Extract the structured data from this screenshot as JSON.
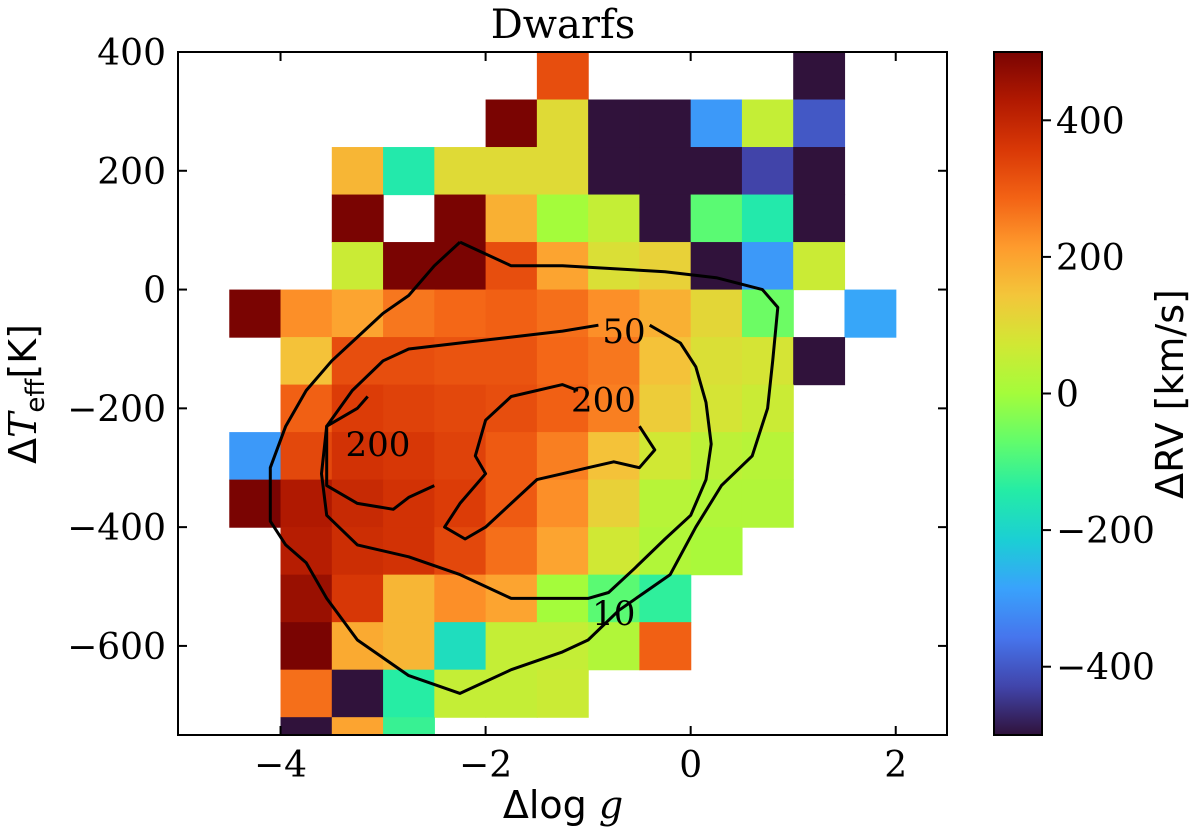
{
  "chart_data": {
    "type": "heatmap",
    "title": "Dwarfs",
    "xlabel": "Δlog g",
    "ylabel": "ΔT_eff[K]",
    "xlim": [
      -5,
      2.5
    ],
    "ylim": [
      -750,
      400
    ],
    "x_ticks": [
      -4,
      -2,
      0,
      2
    ],
    "x_tick_labels": [
      "−4",
      "−2",
      "0",
      "2"
    ],
    "y_ticks": [
      400,
      200,
      0,
      -200,
      -400,
      -600
    ],
    "y_tick_labels": [
      "400",
      "200",
      "0",
      "−200",
      "−400",
      "−600"
    ],
    "bin_width_x": 0.5,
    "bin_height_y": 80,
    "colorbar": {
      "label": "ΔRV [km/s]",
      "range": [
        -500,
        500
      ],
      "ticks": [
        400,
        200,
        0,
        -200,
        -400
      ],
      "tick_labels": [
        "400",
        "200",
        "0",
        "−200",
        "−400"
      ],
      "colormap": [
        "#30123b",
        "#4145ab",
        "#4675ed",
        "#39a2fc",
        "#1bcfd4",
        "#24eca6",
        "#61fc6c",
        "#a4fc3b",
        "#d1e834",
        "#f3c63a",
        "#fe9b2d",
        "#f36315",
        "#d93806",
        "#b11901",
        "#7a0402"
      ]
    },
    "cells": [
      {
        "x": -1.25,
        "y": 360,
        "v": 320
      },
      {
        "x": 1.25,
        "y": 360,
        "v": -500
      },
      {
        "x": -1.75,
        "y": 280,
        "v": 500
      },
      {
        "x": -1.25,
        "y": 280,
        "v": 100
      },
      {
        "x": -0.75,
        "y": 280,
        "v": -500
      },
      {
        "x": -0.25,
        "y": 280,
        "v": -500
      },
      {
        "x": 0.25,
        "y": 280,
        "v": -300
      },
      {
        "x": 0.75,
        "y": 280,
        "v": 50
      },
      {
        "x": 1.25,
        "y": 280,
        "v": -400
      },
      {
        "x": -3.25,
        "y": 200,
        "v": 170
      },
      {
        "x": -2.75,
        "y": 200,
        "v": -150
      },
      {
        "x": -2.25,
        "y": 200,
        "v": 100
      },
      {
        "x": -1.75,
        "y": 200,
        "v": 100
      },
      {
        "x": -1.25,
        "y": 200,
        "v": 100
      },
      {
        "x": -0.75,
        "y": 200,
        "v": -500
      },
      {
        "x": -0.25,
        "y": 200,
        "v": -500
      },
      {
        "x": 0.25,
        "y": 200,
        "v": -500
      },
      {
        "x": 0.75,
        "y": 200,
        "v": -430
      },
      {
        "x": 1.25,
        "y": 200,
        "v": -500
      },
      {
        "x": -3.25,
        "y": 120,
        "v": 500
      },
      {
        "x": -2.25,
        "y": 120,
        "v": 500
      },
      {
        "x": -1.75,
        "y": 120,
        "v": 180
      },
      {
        "x": -1.25,
        "y": 120,
        "v": 0
      },
      {
        "x": -0.75,
        "y": 120,
        "v": 50
      },
      {
        "x": -0.25,
        "y": 120,
        "v": -500
      },
      {
        "x": 0.25,
        "y": 120,
        "v": -80
      },
      {
        "x": 0.75,
        "y": 120,
        "v": -150
      },
      {
        "x": 1.25,
        "y": 120,
        "v": -500
      },
      {
        "x": -3.25,
        "y": 40,
        "v": 60
      },
      {
        "x": -2.75,
        "y": 40,
        "v": 500
      },
      {
        "x": -2.25,
        "y": 40,
        "v": 500
      },
      {
        "x": -1.75,
        "y": 40,
        "v": 320
      },
      {
        "x": -1.25,
        "y": 40,
        "v": 200
      },
      {
        "x": -0.75,
        "y": 40,
        "v": 90
      },
      {
        "x": -0.25,
        "y": 40,
        "v": 120
      },
      {
        "x": 0.25,
        "y": 40,
        "v": -500
      },
      {
        "x": 0.75,
        "y": 40,
        "v": -300
      },
      {
        "x": 1.25,
        "y": 40,
        "v": 60
      },
      {
        "x": -4.25,
        "y": -40,
        "v": 500
      },
      {
        "x": -3.75,
        "y": -40,
        "v": 230
      },
      {
        "x": -3.25,
        "y": -40,
        "v": 200
      },
      {
        "x": -2.75,
        "y": -40,
        "v": 260
      },
      {
        "x": -2.25,
        "y": -40,
        "v": 280
      },
      {
        "x": -1.75,
        "y": -40,
        "v": 290
      },
      {
        "x": -1.25,
        "y": -40,
        "v": 270
      },
      {
        "x": -0.75,
        "y": -40,
        "v": 230
      },
      {
        "x": -0.25,
        "y": -40,
        "v": 180
      },
      {
        "x": 0.25,
        "y": -40,
        "v": 110
      },
      {
        "x": 0.75,
        "y": -40,
        "v": -60
      },
      {
        "x": 1.75,
        "y": -40,
        "v": -280
      },
      {
        "x": -3.75,
        "y": -120,
        "v": 150
      },
      {
        "x": -3.25,
        "y": -120,
        "v": 320
      },
      {
        "x": -2.75,
        "y": -120,
        "v": 320
      },
      {
        "x": -2.25,
        "y": -120,
        "v": 310
      },
      {
        "x": -1.75,
        "y": -120,
        "v": 310
      },
      {
        "x": -1.25,
        "y": -120,
        "v": 280
      },
      {
        "x": -0.75,
        "y": -120,
        "v": 260
      },
      {
        "x": -0.25,
        "y": -120,
        "v": 150
      },
      {
        "x": 0.25,
        "y": -120,
        "v": 90
      },
      {
        "x": 0.75,
        "y": -120,
        "v": 80
      },
      {
        "x": 1.25,
        "y": -120,
        "v": -500
      },
      {
        "x": -3.75,
        "y": -200,
        "v": 290
      },
      {
        "x": -3.25,
        "y": -200,
        "v": 350
      },
      {
        "x": -2.75,
        "y": -200,
        "v": 340
      },
      {
        "x": -2.25,
        "y": -200,
        "v": 330
      },
      {
        "x": -1.75,
        "y": -200,
        "v": 320
      },
      {
        "x": -1.25,
        "y": -200,
        "v": 290
      },
      {
        "x": -0.75,
        "y": -200,
        "v": 250
      },
      {
        "x": -0.25,
        "y": -200,
        "v": 130
      },
      {
        "x": 0.25,
        "y": -200,
        "v": 80
      },
      {
        "x": 0.75,
        "y": -200,
        "v": 60
      },
      {
        "x": -4.25,
        "y": -280,
        "v": -300
      },
      {
        "x": -3.75,
        "y": -280,
        "v": 330
      },
      {
        "x": -3.25,
        "y": -280,
        "v": 370
      },
      {
        "x": -2.75,
        "y": -280,
        "v": 360
      },
      {
        "x": -2.25,
        "y": -280,
        "v": 340
      },
      {
        "x": -1.75,
        "y": -280,
        "v": 300
      },
      {
        "x": -1.25,
        "y": -280,
        "v": 250
      },
      {
        "x": -0.75,
        "y": -280,
        "v": 150
      },
      {
        "x": -0.25,
        "y": -280,
        "v": 70
      },
      {
        "x": 0.25,
        "y": -280,
        "v": 40
      },
      {
        "x": 0.75,
        "y": -280,
        "v": 30
      },
      {
        "x": -4.25,
        "y": -360,
        "v": 500
      },
      {
        "x": -3.75,
        "y": -360,
        "v": 430
      },
      {
        "x": -3.25,
        "y": -360,
        "v": 390
      },
      {
        "x": -2.75,
        "y": -360,
        "v": 370
      },
      {
        "x": -2.25,
        "y": -360,
        "v": 350
      },
      {
        "x": -1.75,
        "y": -360,
        "v": 300
      },
      {
        "x": -1.25,
        "y": -360,
        "v": 230
      },
      {
        "x": -0.75,
        "y": -360,
        "v": 120
      },
      {
        "x": -0.25,
        "y": -360,
        "v": 30
      },
      {
        "x": 0.25,
        "y": -360,
        "v": 20
      },
      {
        "x": 0.75,
        "y": -360,
        "v": 20
      },
      {
        "x": -3.75,
        "y": -440,
        "v": 420
      },
      {
        "x": -3.25,
        "y": -440,
        "v": 380
      },
      {
        "x": -2.75,
        "y": -440,
        "v": 370
      },
      {
        "x": -2.25,
        "y": -440,
        "v": 330
      },
      {
        "x": -1.75,
        "y": -440,
        "v": 270
      },
      {
        "x": -1.25,
        "y": -440,
        "v": 200
      },
      {
        "x": -0.75,
        "y": -440,
        "v": 70
      },
      {
        "x": -0.25,
        "y": -440,
        "v": 20
      },
      {
        "x": 0.25,
        "y": -440,
        "v": 10
      },
      {
        "x": -3.75,
        "y": -520,
        "v": 460
      },
      {
        "x": -3.25,
        "y": -520,
        "v": 360
      },
      {
        "x": -2.75,
        "y": -520,
        "v": 170
      },
      {
        "x": -2.25,
        "y": -520,
        "v": 230
      },
      {
        "x": -1.75,
        "y": -520,
        "v": 200
      },
      {
        "x": -1.25,
        "y": -520,
        "v": 0
      },
      {
        "x": -0.75,
        "y": -520,
        "v": -80
      },
      {
        "x": -0.25,
        "y": -520,
        "v": -130
      },
      {
        "x": -3.75,
        "y": -600,
        "v": 500
      },
      {
        "x": -3.25,
        "y": -600,
        "v": 190
      },
      {
        "x": -2.75,
        "y": -600,
        "v": 170
      },
      {
        "x": -2.25,
        "y": -600,
        "v": -180
      },
      {
        "x": -1.75,
        "y": -600,
        "v": 50
      },
      {
        "x": -1.25,
        "y": -600,
        "v": 50
      },
      {
        "x": -0.75,
        "y": -600,
        "v": 20
      },
      {
        "x": -0.25,
        "y": -600,
        "v": 290
      },
      {
        "x": -3.75,
        "y": -680,
        "v": 270
      },
      {
        "x": -3.25,
        "y": -680,
        "v": -500
      },
      {
        "x": -2.75,
        "y": -680,
        "v": -140
      },
      {
        "x": -2.25,
        "y": -680,
        "v": 50
      },
      {
        "x": -1.75,
        "y": -680,
        "v": 50
      },
      {
        "x": -1.25,
        "y": -680,
        "v": 60
      },
      {
        "x": -3.75,
        "y": -760,
        "v": -500
      },
      {
        "x": -3.25,
        "y": -760,
        "v": 200
      },
      {
        "x": -2.75,
        "y": -760,
        "v": -120
      }
    ],
    "contours": [
      {
        "level": "10",
        "label": "10",
        "label_at": {
          "x": -0.75,
          "y": -550
        },
        "points": [
          [
            -2.25,
            80
          ],
          [
            -1.75,
            40
          ],
          [
            -1.25,
            40
          ],
          [
            -0.25,
            30
          ],
          [
            0.25,
            20
          ],
          [
            0.7,
            0
          ],
          [
            0.85,
            -30
          ],
          [
            0.8,
            -120
          ],
          [
            0.75,
            -200
          ],
          [
            0.6,
            -280
          ],
          [
            0.3,
            -330
          ],
          [
            0.05,
            -400
          ],
          [
            -0.2,
            -480
          ],
          [
            -0.45,
            -510
          ],
          [
            -0.7,
            -540
          ],
          [
            -1.0,
            -590
          ],
          [
            -1.25,
            -610
          ],
          [
            -1.75,
            -640
          ],
          [
            -2.25,
            -680
          ],
          [
            -2.75,
            -650
          ],
          [
            -3.25,
            -590
          ],
          [
            -3.55,
            -520
          ],
          [
            -3.75,
            -460
          ],
          [
            -3.95,
            -430
          ],
          [
            -4.1,
            -390
          ],
          [
            -4.1,
            -300
          ],
          [
            -3.95,
            -230
          ],
          [
            -3.75,
            -170
          ],
          [
            -3.5,
            -120
          ],
          [
            -3.25,
            -80
          ],
          [
            -3.0,
            -40
          ],
          [
            -2.75,
            -10
          ],
          [
            -2.5,
            40
          ],
          [
            -2.25,
            80
          ]
        ]
      },
      {
        "level": "50",
        "label": "50",
        "label_at": {
          "x": -0.65,
          "y": -75
        },
        "points": [
          [
            -0.9,
            -60
          ],
          [
            -1.25,
            -70
          ],
          [
            -1.75,
            -80
          ],
          [
            -2.25,
            -90
          ],
          [
            -2.75,
            -100
          ],
          [
            -3.0,
            -120
          ],
          [
            -3.3,
            -170
          ],
          [
            -3.55,
            -230
          ],
          [
            -3.6,
            -310
          ],
          [
            -3.55,
            -380
          ],
          [
            -3.25,
            -430
          ],
          [
            -2.75,
            -450
          ],
          [
            -2.25,
            -480
          ],
          [
            -1.75,
            -520
          ],
          [
            -1.25,
            -520
          ],
          [
            -1.0,
            -520
          ],
          [
            -0.8,
            -510
          ],
          [
            -0.55,
            -470
          ],
          [
            -0.25,
            -420
          ],
          [
            0.0,
            -380
          ],
          [
            0.15,
            -320
          ],
          [
            0.2,
            -260
          ],
          [
            0.15,
            -190
          ],
          [
            0.05,
            -130
          ],
          [
            -0.1,
            -90
          ],
          [
            -0.4,
            -60
          ]
        ]
      },
      {
        "level": "200",
        "label": "200",
        "label_at": {
          "x": -0.85,
          "y": -190
        },
        "points": [
          [
            -1.1,
            -170
          ],
          [
            -1.25,
            -160
          ],
          [
            -1.75,
            -180
          ],
          [
            -2.0,
            -220
          ],
          [
            -2.1,
            -280
          ],
          [
            -2.0,
            -310
          ],
          [
            -2.25,
            -360
          ],
          [
            -2.4,
            -400
          ],
          [
            -2.2,
            -420
          ],
          [
            -2.0,
            -400
          ],
          [
            -1.75,
            -360
          ],
          [
            -1.5,
            -320
          ],
          [
            -1.25,
            -310
          ],
          [
            -1.0,
            -300
          ],
          [
            -0.75,
            -290
          ],
          [
            -0.5,
            -300
          ],
          [
            -0.35,
            -270
          ],
          [
            -0.5,
            -230
          ]
        ]
      },
      {
        "level": "200",
        "label": "200",
        "label_at": {
          "x": -3.05,
          "y": -265
        },
        "points": [
          [
            -3.15,
            -180
          ],
          [
            -3.25,
            -200
          ],
          [
            -3.55,
            -230
          ],
          [
            -3.55,
            -330
          ],
          [
            -3.25,
            -360
          ],
          [
            -2.9,
            -370
          ],
          [
            -2.75,
            -350
          ],
          [
            -2.5,
            -330
          ]
        ]
      }
    ]
  }
}
